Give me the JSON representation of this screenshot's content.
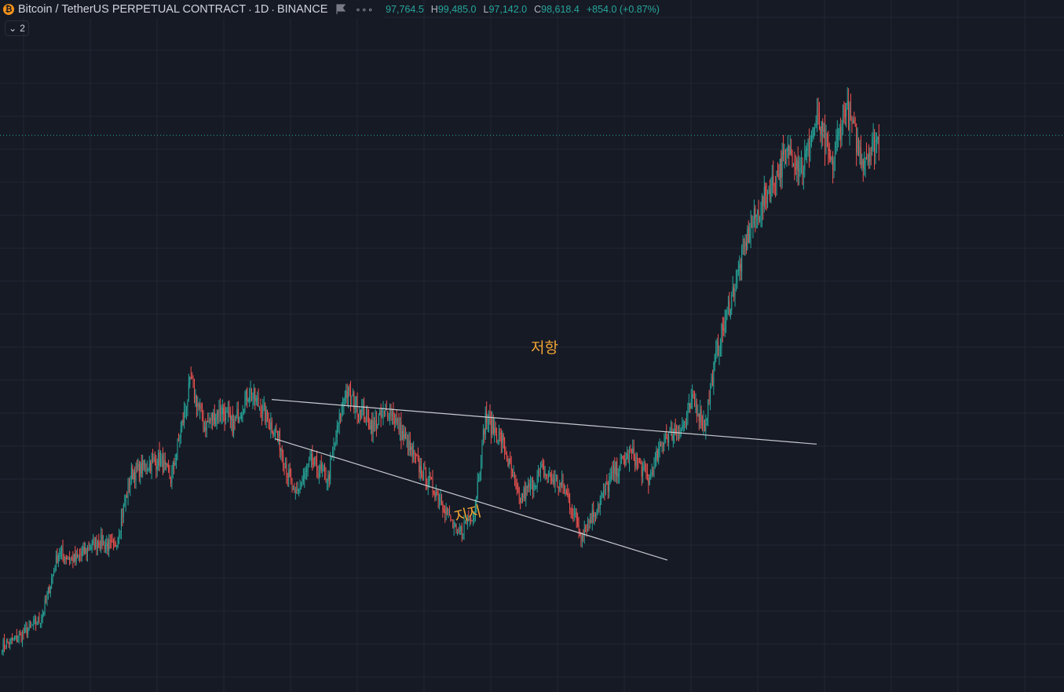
{
  "header": {
    "symbol_title": "Bitcoin / TetherUS PERPETUAL CONTRACT",
    "interval": "1D",
    "exchange": "BINANCE",
    "coin_glyph": "₿",
    "more_glyph": "∘∘∘",
    "ohlc": {
      "open": "97,764.5",
      "high_label": "H",
      "high": "99,485.0",
      "low_label": "L",
      "low": "97,142.0",
      "close_label": "C",
      "close": "98,618.4",
      "change": "+854.0 (+0.87%)"
    }
  },
  "indicators_toggle": {
    "chevron": "⌄",
    "count": "2"
  },
  "annotations": {
    "resistance": "저항",
    "support": "지지"
  },
  "colors": {
    "background": "#161a25",
    "grid": "#232735",
    "up": "#26a69a",
    "down": "#ef5350",
    "trendline": "#c8cad0",
    "annotation": "#f0a434",
    "last_price_line": "#26a69a"
  },
  "chart_data": {
    "type": "candlestick",
    "interval": "1D",
    "title": "Bitcoin / TetherUS PERPETUAL CONTRACT · 1D · BINANCE",
    "last_price": 98618.4,
    "trendlines": [
      {
        "name": "저항",
        "from": [
          0.0,
          69000
        ],
        "to": [
          1.0,
          64000
        ]
      },
      {
        "name": "지지",
        "from": [
          0.0,
          64600
        ],
        "to": [
          1.0,
          51000
        ]
      }
    ],
    "anchors": [
      [
        0,
        41500
      ],
      [
        15,
        42300
      ],
      [
        35,
        44500
      ],
      [
        50,
        51800
      ],
      [
        65,
        51000
      ],
      [
        85,
        53200
      ],
      [
        100,
        52300
      ],
      [
        115,
        60700
      ],
      [
        140,
        62300
      ],
      [
        150,
        60000
      ],
      [
        168,
        71000
      ],
      [
        180,
        66000
      ],
      [
        195,
        68000
      ],
      [
        205,
        66000
      ],
      [
        220,
        70000
      ],
      [
        245,
        65000
      ],
      [
        260,
        58000
      ],
      [
        275,
        62000
      ],
      [
        290,
        60000
      ],
      [
        305,
        70000
      ],
      [
        330,
        66000
      ],
      [
        345,
        68000
      ],
      [
        360,
        64000
      ],
      [
        375,
        60500
      ],
      [
        390,
        58000
      ],
      [
        405,
        53700
      ],
      [
        420,
        56500
      ],
      [
        430,
        67000
      ],
      [
        445,
        64300
      ],
      [
        460,
        57700
      ],
      [
        480,
        61000
      ],
      [
        500,
        59000
      ],
      [
        515,
        54000
      ],
      [
        530,
        57000
      ],
      [
        545,
        61000
      ],
      [
        560,
        63000
      ],
      [
        575,
        60000
      ],
      [
        590,
        65000
      ],
      [
        605,
        65800
      ],
      [
        615,
        69000
      ],
      [
        625,
        66000
      ],
      [
        635,
        74000
      ],
      [
        650,
        81000
      ],
      [
        665,
        88000
      ],
      [
        680,
        92000
      ],
      [
        700,
        97000
      ],
      [
        712,
        95000
      ],
      [
        725,
        100500
      ],
      [
        738,
        95000
      ],
      [
        750,
        102000
      ],
      [
        765,
        96000
      ],
      [
        780,
        98200
      ]
    ],
    "price_range": [
      40000,
      108500
    ]
  }
}
